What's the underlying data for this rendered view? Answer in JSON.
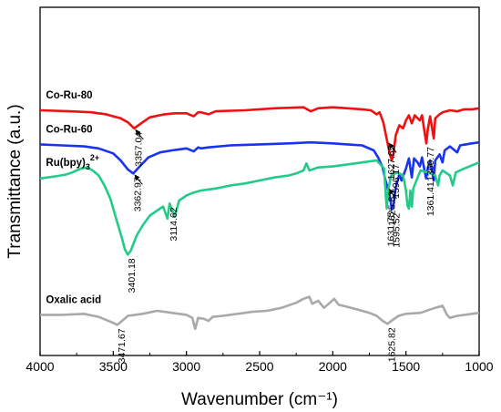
{
  "chart_data": {
    "type": "line",
    "xlabel": "Wavenumber (cm⁻¹)",
    "ylabel": "Transmittance (a.u.)",
    "xlim": [
      4000,
      1000
    ],
    "x_reversed": true,
    "x_ticks": [
      4000,
      3500,
      3000,
      2500,
      2000,
      1500,
      1000
    ],
    "y_ticks": [],
    "grid": false,
    "series": [
      {
        "name": "Co-Ru-80",
        "color": "#ee1111",
        "offset": 72,
        "points": [
          [
            4000,
            -2
          ],
          [
            3800,
            -3
          ],
          [
            3650,
            -4
          ],
          [
            3550,
            -6
          ],
          [
            3450,
            -10
          ],
          [
            3400,
            -14
          ],
          [
            3357,
            -20
          ],
          [
            3300,
            -14
          ],
          [
            3250,
            -9
          ],
          [
            3150,
            -6
          ],
          [
            3080,
            -5
          ],
          [
            3000,
            -5
          ],
          [
            2950,
            -8
          ],
          [
            2920,
            -4
          ],
          [
            2900,
            -4
          ],
          [
            2850,
            -6
          ],
          [
            2800,
            -3
          ],
          [
            2600,
            -2
          ],
          [
            2400,
            0
          ],
          [
            2200,
            1
          ],
          [
            2150,
            -3
          ],
          [
            2100,
            0
          ],
          [
            2000,
            1
          ],
          [
            1900,
            0
          ],
          [
            1800,
            -1
          ],
          [
            1740,
            -2
          ],
          [
            1700,
            -6
          ],
          [
            1680,
            -4
          ],
          [
            1655,
            -14
          ],
          [
            1628,
            -33
          ],
          [
            1610,
            -46
          ],
          [
            1596,
            -52
          ],
          [
            1585,
            -45
          ],
          [
            1570,
            -27
          ],
          [
            1545,
            -17
          ],
          [
            1520,
            -20
          ],
          [
            1500,
            -12
          ],
          [
            1480,
            -7
          ],
          [
            1460,
            -15
          ],
          [
            1440,
            -7
          ],
          [
            1420,
            -10
          ],
          [
            1405,
            -12
          ],
          [
            1390,
            -7
          ],
          [
            1361,
            -35
          ],
          [
            1350,
            -20
          ],
          [
            1335,
            -8
          ],
          [
            1310,
            -30
          ],
          [
            1300,
            -10
          ],
          [
            1270,
            -6
          ],
          [
            1250,
            -4
          ],
          [
            1200,
            -2
          ],
          [
            1150,
            -3
          ],
          [
            1100,
            -1
          ],
          [
            1050,
            -1
          ],
          [
            1000,
            0
          ]
        ]
      },
      {
        "name": "Co-Ru-60",
        "color": "#1a33ee",
        "offset": 38,
        "points": [
          [
            4000,
            -2
          ],
          [
            3850,
            -3
          ],
          [
            3700,
            -4
          ],
          [
            3600,
            -6
          ],
          [
            3500,
            -11
          ],
          [
            3450,
            -18
          ],
          [
            3400,
            -27
          ],
          [
            3363,
            -31
          ],
          [
            3320,
            -24
          ],
          [
            3260,
            -15
          ],
          [
            3180,
            -10
          ],
          [
            3100,
            -8
          ],
          [
            3050,
            -7
          ],
          [
            3000,
            -6
          ],
          [
            2950,
            -9
          ],
          [
            2920,
            -5
          ],
          [
            2900,
            -6
          ],
          [
            2850,
            -5
          ],
          [
            2700,
            -3
          ],
          [
            2500,
            -2
          ],
          [
            2300,
            -1
          ],
          [
            2150,
            0
          ],
          [
            2000,
            -1
          ],
          [
            1900,
            -2
          ],
          [
            1800,
            -3
          ],
          [
            1720,
            -8
          ],
          [
            1690,
            -15
          ],
          [
            1660,
            -25
          ],
          [
            1640,
            -38
          ],
          [
            1626,
            -45
          ],
          [
            1610,
            -54
          ],
          [
            1596,
            -67
          ],
          [
            1585,
            -63
          ],
          [
            1570,
            -45
          ],
          [
            1545,
            -32
          ],
          [
            1530,
            -38
          ],
          [
            1500,
            -26
          ],
          [
            1480,
            -16
          ],
          [
            1460,
            -35
          ],
          [
            1445,
            -16
          ],
          [
            1420,
            -20
          ],
          [
            1405,
            -24
          ],
          [
            1390,
            -15
          ],
          [
            1362,
            -36
          ],
          [
            1350,
            -25
          ],
          [
            1335,
            -18
          ],
          [
            1310,
            -38
          ],
          [
            1300,
            -18
          ],
          [
            1270,
            -12
          ],
          [
            1250,
            -20
          ],
          [
            1235,
            -8
          ],
          [
            1200,
            -4
          ],
          [
            1150,
            -10
          ],
          [
            1130,
            -3
          ],
          [
            1050,
            -1
          ],
          [
            1000,
            0
          ]
        ]
      },
      {
        "name": "Ru(bpy)3 2+",
        "color": "#22cc88",
        "offset": 0,
        "points": [
          [
            4000,
            2
          ],
          [
            3900,
            4
          ],
          [
            3820,
            6
          ],
          [
            3780,
            8
          ],
          [
            3720,
            12
          ],
          [
            3680,
            13
          ],
          [
            3640,
            10
          ],
          [
            3600,
            5
          ],
          [
            3560,
            -5
          ],
          [
            3520,
            -18
          ],
          [
            3480,
            -38
          ],
          [
            3440,
            -58
          ],
          [
            3420,
            -69
          ],
          [
            3401,
            -74
          ],
          [
            3380,
            -70
          ],
          [
            3340,
            -55
          ],
          [
            3300,
            -45
          ],
          [
            3250,
            -35
          ],
          [
            3200,
            -30
          ],
          [
            3160,
            -26
          ],
          [
            3130,
            -38
          ],
          [
            3115,
            -23
          ],
          [
            3080,
            -36
          ],
          [
            3050,
            -20
          ],
          [
            3000,
            -15
          ],
          [
            2950,
            -12
          ],
          [
            2900,
            -10
          ],
          [
            2800,
            -8
          ],
          [
            2700,
            -5
          ],
          [
            2600,
            -3
          ],
          [
            2500,
            0
          ],
          [
            2400,
            3
          ],
          [
            2300,
            5
          ],
          [
            2250,
            7
          ],
          [
            2200,
            10
          ],
          [
            2180,
            17
          ],
          [
            2160,
            10
          ],
          [
            2100,
            13
          ],
          [
            2000,
            14
          ],
          [
            1900,
            16
          ],
          [
            1800,
            18
          ],
          [
            1700,
            20
          ],
          [
            1650,
            12
          ],
          [
            1632,
            -28
          ],
          [
            1620,
            -8
          ],
          [
            1600,
            5
          ],
          [
            1560,
            8
          ],
          [
            1520,
            5
          ],
          [
            1500,
            -10
          ],
          [
            1490,
            -25
          ],
          [
            1480,
            -28
          ],
          [
            1470,
            -10
          ],
          [
            1460,
            -26
          ],
          [
            1450,
            -8
          ],
          [
            1420,
            3
          ],
          [
            1400,
            10
          ],
          [
            1350,
            8
          ],
          [
            1300,
            5
          ],
          [
            1280,
            -5
          ],
          [
            1270,
            5
          ],
          [
            1250,
            10
          ],
          [
            1200,
            5
          ],
          [
            1180,
            -5
          ],
          [
            1160,
            8
          ],
          [
            1100,
            12
          ],
          [
            1050,
            15
          ],
          [
            1000,
            18
          ]
        ]
      },
      {
        "name": "Oxalic acid",
        "color": "#a9a9a9",
        "offset": -132,
        "points": [
          [
            4000,
            -2
          ],
          [
            3850,
            -2
          ],
          [
            3700,
            -1
          ],
          [
            3600,
            -4
          ],
          [
            3550,
            -7
          ],
          [
            3500,
            -10
          ],
          [
            3472,
            -12
          ],
          [
            3440,
            -8
          ],
          [
            3400,
            -3
          ],
          [
            3300,
            -1
          ],
          [
            3200,
            2
          ],
          [
            3100,
            0
          ],
          [
            3000,
            -2
          ],
          [
            2960,
            -5
          ],
          [
            2940,
            -16
          ],
          [
            2920,
            -5
          ],
          [
            2880,
            -6
          ],
          [
            2850,
            -8
          ],
          [
            2820,
            -4
          ],
          [
            2750,
            -3
          ],
          [
            2650,
            -1
          ],
          [
            2550,
            1
          ],
          [
            2450,
            2
          ],
          [
            2350,
            5
          ],
          [
            2250,
            10
          ],
          [
            2200,
            14
          ],
          [
            2160,
            16
          ],
          [
            2140,
            9
          ],
          [
            2100,
            12
          ],
          [
            2060,
            5
          ],
          [
            2020,
            10
          ],
          [
            1990,
            14
          ],
          [
            1960,
            8
          ],
          [
            1900,
            6
          ],
          [
            1850,
            4
          ],
          [
            1800,
            2
          ],
          [
            1750,
            0
          ],
          [
            1700,
            -3
          ],
          [
            1660,
            -8
          ],
          [
            1626,
            -11
          ],
          [
            1600,
            -8
          ],
          [
            1550,
            -3
          ],
          [
            1500,
            -1
          ],
          [
            1400,
            0
          ],
          [
            1300,
            5
          ],
          [
            1250,
            7
          ],
          [
            1220,
            -2
          ],
          [
            1200,
            -5
          ],
          [
            1150,
            -3
          ],
          [
            1100,
            -2
          ],
          [
            1050,
            -1
          ],
          [
            1000,
            0
          ]
        ]
      }
    ],
    "series_labels": [
      {
        "text": "Co-Ru-80",
        "sup": "",
        "x": 3960,
        "series": 0
      },
      {
        "text": "Co-Ru-60",
        "sup": "",
        "x": 3960,
        "series": 1
      },
      {
        "text": "Ru(bpy)",
        "sub": "3",
        "sup": "2+",
        "x": 3960,
        "series": 2
      },
      {
        "text": "Oxalic acid",
        "sup": "",
        "x": 3960,
        "series": 3
      }
    ],
    "annotations": [
      {
        "text": "3357.04",
        "series": 0,
        "x": 3357.04,
        "arrow": true
      },
      {
        "text": "1627.65",
        "series": 0,
        "x": 1627.65,
        "arrow": true
      },
      {
        "text": "1596.17",
        "series": 0,
        "x": 1596.17,
        "arrow": false
      },
      {
        "text": "1360.77",
        "series": 0,
        "x": 1360.77,
        "arrow": false
      },
      {
        "text": "3362.97",
        "series": 1,
        "x": 3362.97,
        "arrow": true
      },
      {
        "text": "1625.82",
        "series": 1,
        "x": 1625.82,
        "arrow": true
      },
      {
        "text": "1595.52",
        "series": 1,
        "x": 1595.52,
        "arrow": false
      },
      {
        "text": "1361.41",
        "series": 1,
        "x": 1361.41,
        "arrow": false
      },
      {
        "text": "3401.18",
        "series": 2,
        "x": 3401.18,
        "arrow": false
      },
      {
        "text": "3114.62",
        "series": 2,
        "x": 3114.62,
        "arrow": false
      },
      {
        "text": "1631.75",
        "series": 2,
        "x": 1631.75,
        "arrow": false
      },
      {
        "text": "3471.67",
        "series": 3,
        "x": 3471.67,
        "arrow": false
      },
      {
        "text": "1625.82",
        "series": 3,
        "x": 1625.82,
        "arrow": false
      }
    ]
  }
}
